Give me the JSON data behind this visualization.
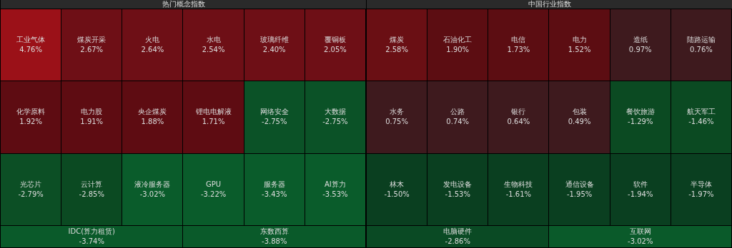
{
  "chart_data": [
    {
      "type": "other",
      "title": "热门概念指数",
      "categories": [
        "工业气体",
        "煤炭开采",
        "火电",
        "水电",
        "玻璃纤维",
        "覆铜板",
        "化学原料",
        "电力股",
        "央企煤炭",
        "锂电电解液",
        "网络安全",
        "大数据",
        "光芯片",
        "云计算",
        "液冷服务器",
        "GPU",
        "服务器",
        "AI算力",
        "IDC(算力租赁)",
        "东数西算"
      ],
      "values": [
        4.76,
        2.67,
        2.64,
        2.54,
        2.4,
        2.05,
        1.92,
        1.91,
        1.88,
        1.71,
        -2.75,
        -2.75,
        -2.79,
        -2.85,
        -3.02,
        -3.22,
        -3.43,
        -3.53,
        -3.74,
        -3.88
      ],
      "value_labels": [
        "4.76%",
        "2.67%",
        "2.64%",
        "2.54%",
        "2.40%",
        "2.05%",
        "1.92%",
        "1.91%",
        "1.88%",
        "1.71%",
        "-2.75%",
        "-2.75%",
        "-2.79%",
        "-2.85%",
        "-3.02%",
        "-3.22%",
        "-3.43%",
        "-3.53%",
        "-3.74%",
        "-3.88%"
      ],
      "colors": [
        "#9b1118",
        "#6e0f16",
        "#6e0f16",
        "#6e0f16",
        "#6e0f16",
        "#6e0f16",
        "#5e0c12",
        "#5e0c12",
        "#5e0c12",
        "#5e0c12",
        "#0b5227",
        "#0b5227",
        "#0c4f25",
        "#0b4a22",
        "#0a5c2b",
        "#0a5c2b",
        "#0a5c2b",
        "#0a5c2b",
        "#0a5a2a",
        "#0a5a2a"
      ]
    },
    {
      "type": "other",
      "title": "中国行业指数",
      "categories": [
        "煤炭",
        "石油化工",
        "电信",
        "电力",
        "造纸",
        "陆路运输",
        "水务",
        "公路",
        "银行",
        "包装",
        "餐饮旅游",
        "航天军工",
        "林木",
        "发电设备",
        "生物科技",
        "通信设备",
        "软件",
        "半导体",
        "电脑硬件",
        "互联网"
      ],
      "values": [
        2.58,
        1.9,
        1.73,
        1.52,
        0.97,
        0.76,
        0.75,
        0.74,
        0.64,
        0.49,
        -1.29,
        -1.46,
        -1.5,
        -1.53,
        -1.61,
        -1.95,
        -1.94,
        -1.97,
        -2.86,
        -3.02
      ],
      "value_labels": [
        "2.58%",
        "1.90%",
        "1.73%",
        "1.52%",
        "0.97%",
        "0.76%",
        "0.75%",
        "0.74%",
        "0.64%",
        "0.49%",
        "-1.29%",
        "-1.46%",
        "-1.50%",
        "-1.53%",
        "-1.61%",
        "-1.95%",
        "-1.94%",
        "-1.97%",
        "-2.86%",
        "-3.02%"
      ],
      "colors": [
        "#6a0f14",
        "#5c0d12",
        "#5c0d12",
        "#5c0d12",
        "#3e1a1e",
        "#3e1a1e",
        "#3e1a1e",
        "#3e1a1e",
        "#3e1a1e",
        "#3e1a1e",
        "#0b4a22",
        "#0b4a22",
        "#0a3f20",
        "#0a3f20",
        "#0a3f20",
        "#0a3f20",
        "#0a3f20",
        "#0a3f20",
        "#0a4a24",
        "#0a5a2a"
      ]
    }
  ]
}
